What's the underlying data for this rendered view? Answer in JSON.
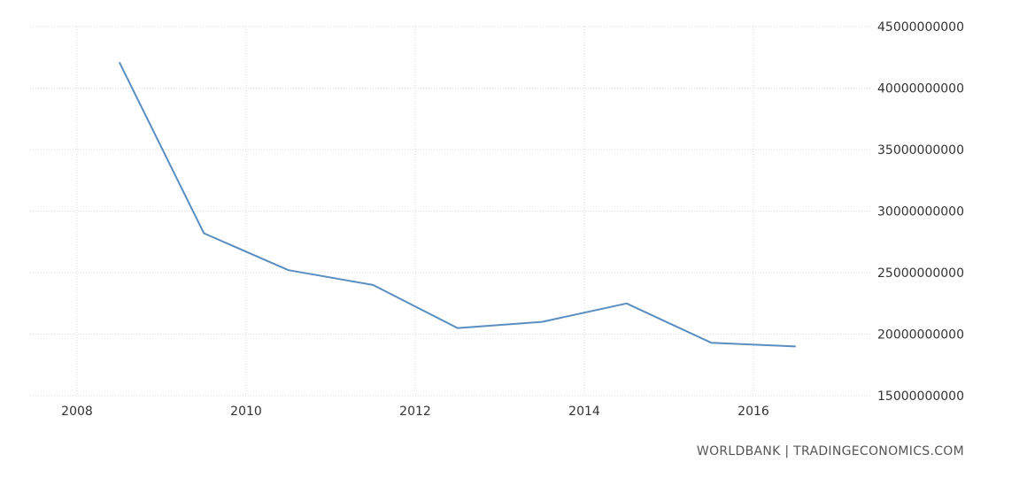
{
  "chart_data": {
    "type": "line",
    "title": "",
    "xlabel": "",
    "ylabel": "",
    "x": [
      2008.5,
      2009.5,
      2010.5,
      2011.5,
      2012.5,
      2013.5,
      2014.5,
      2015.5,
      2016.5
    ],
    "series": [
      {
        "color": "#5a8ec0",
        "values": [
          42100000000,
          28200000000,
          25200000000,
          24000000000,
          20500000000,
          21000000000,
          22500000000,
          19300000000,
          19000000000
        ]
      }
    ],
    "xlim": [
      2008,
      2017
    ],
    "ylim": [
      15000000000,
      45000000000
    ],
    "x_ticks": [
      2008,
      2010,
      2012,
      2014,
      2016
    ],
    "x_tick_labels": [
      "2008",
      "2010",
      "2012",
      "2014",
      "2016"
    ],
    "y_ticks": [
      15000000000,
      20000000000,
      25000000000,
      30000000000,
      35000000000,
      40000000000,
      45000000000
    ],
    "y_tick_labels": [
      "15000000000",
      "20000000000",
      "25000000000",
      "30000000000",
      "35000000000",
      "40000000000",
      "45000000000"
    ],
    "y_axis_side": "right",
    "grid": true,
    "legend": false
  },
  "source_text": "WORLDBANK | TRADINGECONOMICS.COM"
}
